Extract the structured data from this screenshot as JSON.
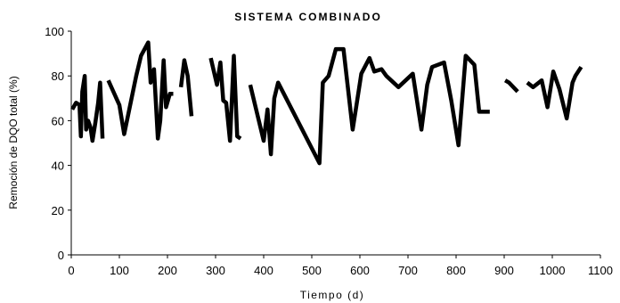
{
  "chart_data": {
    "type": "line",
    "title": "SISTEMA COMBINADO",
    "xlabel": "Tiempo (d)",
    "ylabel": "Remoción de DQO total (%)",
    "xlim": [
      0,
      1100
    ],
    "ylim": [
      0,
      100
    ],
    "xticks": [
      0,
      100,
      200,
      300,
      400,
      500,
      600,
      700,
      800,
      900,
      1000,
      1100
    ],
    "yticks": [
      0,
      20,
      40,
      60,
      80,
      100
    ],
    "grid": false,
    "legend": "none",
    "series": [
      {
        "color": "#000000",
        "segments": [
          [
            [
              2,
              65
            ],
            [
              10,
              68
            ],
            [
              17,
              67
            ],
            [
              20,
              53
            ],
            [
              23,
              73
            ],
            [
              28,
              80
            ],
            [
              31,
              56
            ],
            [
              35,
              60
            ],
            [
              40,
              57
            ],
            [
              44,
              51
            ],
            [
              50,
              59
            ],
            [
              56,
              68
            ],
            [
              60,
              77
            ],
            [
              65,
              52
            ]
          ],
          [
            [
              77,
              78
            ],
            [
              100,
              67
            ],
            [
              110,
              54
            ],
            [
              135,
              80
            ],
            [
              145,
              89
            ],
            [
              160,
              95
            ],
            [
              165,
              77
            ],
            [
              172,
              83
            ],
            [
              180,
              52
            ],
            [
              185,
              60
            ],
            [
              192,
              87
            ],
            [
              197,
              66
            ],
            [
              205,
              72
            ],
            [
              212,
              72
            ]
          ],
          [
            [
              228,
              75
            ],
            [
              235,
              87
            ],
            [
              242,
              80
            ],
            [
              250,
              62
            ]
          ],
          [
            [
              290,
              88
            ],
            [
              303,
              76
            ],
            [
              310,
              86
            ],
            [
              316,
              69
            ],
            [
              322,
              68
            ],
            [
              330,
              51
            ],
            [
              338,
              89
            ],
            [
              345,
              53
            ],
            [
              352,
              52
            ]
          ],
          [
            [
              372,
              76
            ],
            [
              400,
              51
            ],
            [
              408,
              65
            ],
            [
              415,
              45
            ],
            [
              422,
              70
            ],
            [
              430,
              77
            ],
            [
              516,
              41
            ],
            [
              523,
              77
            ],
            [
              535,
              80
            ],
            [
              550,
              92
            ],
            [
              566,
              92
            ],
            [
              585,
              56
            ],
            [
              593,
              67
            ],
            [
              603,
              81
            ],
            [
              620,
              88
            ],
            [
              630,
              82
            ],
            [
              645,
              83
            ],
            [
              655,
              80
            ],
            [
              670,
              77
            ],
            [
              680,
              75
            ],
            [
              710,
              81
            ],
            [
              728,
              56
            ],
            [
              740,
              76
            ],
            [
              750,
              84
            ],
            [
              775,
              86
            ],
            [
              790,
              69
            ],
            [
              805,
              49
            ],
            [
              820,
              89
            ],
            [
              838,
              85
            ],
            [
              848,
              64
            ],
            [
              870,
              64
            ]
          ]
        ]
      },
      {
        "color": "#000000",
        "segments": [
          [
            [
              902,
              78
            ],
            [
              910,
              77
            ],
            [
              928,
              73
            ]
          ],
          [
            [
              948,
              77
            ],
            [
              960,
              75
            ],
            [
              978,
              78
            ],
            [
              990,
              66
            ],
            [
              1002,
              82
            ],
            [
              1015,
              74
            ],
            [
              1030,
              61
            ],
            [
              1042,
              77
            ],
            [
              1048,
              80
            ],
            [
              1060,
              84
            ]
          ]
        ]
      }
    ]
  }
}
